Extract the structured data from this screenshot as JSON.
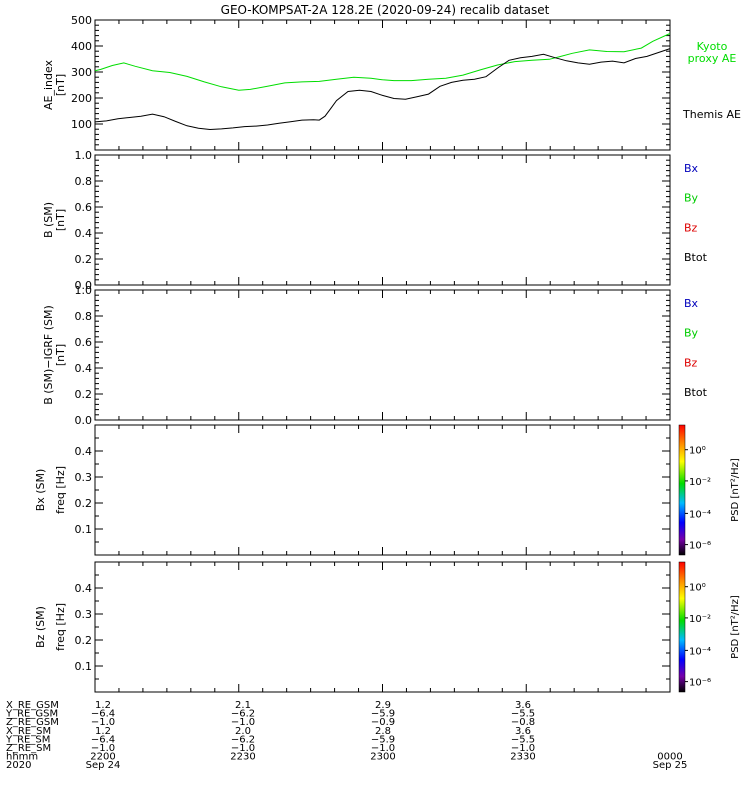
{
  "title": "GEO-KOMPSAT-2A 128.2E (2020-09-24) recalib dataset",
  "chart_data": [
    {
      "type": "line",
      "panel": "ae",
      "ylabel": "AE_index",
      "yunit": "[nT]",
      "ylim": [
        0,
        500
      ],
      "yticks": [
        "100",
        "200",
        "300",
        "400",
        "500"
      ],
      "series": [
        {
          "name": "Kyoto proxy AE",
          "label_lines": [
            "Kyoto",
            "proxy AE"
          ],
          "color": "#00dd00",
          "x": [
            0,
            0.01,
            0.03,
            0.05,
            0.07,
            0.1,
            0.13,
            0.16,
            0.19,
            0.22,
            0.25,
            0.27,
            0.3,
            0.33,
            0.36,
            0.39,
            0.42,
            0.45,
            0.48,
            0.5,
            0.52,
            0.55,
            0.58,
            0.61,
            0.64,
            0.67,
            0.7,
            0.73,
            0.76,
            0.79,
            0.81,
            0.83,
            0.86,
            0.89,
            0.92,
            0.95,
            0.97,
            1.0
          ],
          "y": [
            305,
            310,
            325,
            335,
            322,
            305,
            298,
            283,
            262,
            243,
            230,
            233,
            245,
            258,
            262,
            264,
            272,
            280,
            276,
            270,
            267,
            267,
            272,
            276,
            288,
            308,
            327,
            340,
            345,
            349,
            360,
            372,
            385,
            379,
            378,
            392,
            418,
            448
          ]
        },
        {
          "name": "Themis AE",
          "label_lines": [
            "Themis AE"
          ],
          "color": "#000000",
          "x": [
            0,
            0.02,
            0.04,
            0.06,
            0.08,
            0.1,
            0.12,
            0.14,
            0.16,
            0.18,
            0.2,
            0.22,
            0.24,
            0.26,
            0.28,
            0.3,
            0.32,
            0.34,
            0.36,
            0.38,
            0.39,
            0.4,
            0.41,
            0.42,
            0.44,
            0.46,
            0.48,
            0.5,
            0.52,
            0.54,
            0.56,
            0.58,
            0.6,
            0.62,
            0.64,
            0.66,
            0.68,
            0.7,
            0.72,
            0.74,
            0.76,
            0.78,
            0.8,
            0.82,
            0.84,
            0.86,
            0.88,
            0.9,
            0.92,
            0.94,
            0.96,
            0.98,
            1.0
          ],
          "y": [
            108,
            112,
            120,
            125,
            130,
            138,
            128,
            110,
            93,
            84,
            79,
            81,
            85,
            90,
            92,
            96,
            103,
            109,
            115,
            116,
            115,
            130,
            160,
            190,
            225,
            230,
            225,
            210,
            198,
            195,
            205,
            215,
            245,
            260,
            268,
            272,
            282,
            315,
            345,
            355,
            360,
            368,
            355,
            343,
            335,
            330,
            338,
            342,
            335,
            352,
            360,
            375,
            390
          ]
        }
      ]
    },
    {
      "type": "line",
      "panel": "b",
      "ylabel": "B (SM)",
      "yunit": "[nT]",
      "ylim": [
        0,
        1
      ],
      "yticks": [
        "0.0",
        "0.2",
        "0.4",
        "0.6",
        "0.8",
        "1.0"
      ],
      "legend": [
        {
          "name": "Bx",
          "color": "#0000bb"
        },
        {
          "name": "By",
          "color": "#00cc00"
        },
        {
          "name": "Bz",
          "color": "#dd0000"
        },
        {
          "name": "Btot",
          "color": "#000000"
        }
      ]
    },
    {
      "type": "line",
      "panel": "bdiff",
      "ylabel": "B (SM)−IGRF (SM)",
      "yunit": "[nT]",
      "ylim": [
        0,
        1
      ],
      "yticks": [
        "0.0",
        "0.2",
        "0.4",
        "0.6",
        "0.8",
        "1.0"
      ],
      "legend": [
        {
          "name": "Bx",
          "color": "#0000bb"
        },
        {
          "name": "By",
          "color": "#00cc00"
        },
        {
          "name": "Bz",
          "color": "#dd0000"
        },
        {
          "name": "Btot",
          "color": "#000000"
        }
      ]
    },
    {
      "type": "heatmap",
      "panel": "bx_spec",
      "ylabel_outer": "Bx (SM)",
      "ylabel_inner": "freq [Hz]",
      "yticks": [
        "0.1",
        "0.2",
        "0.3",
        "0.4"
      ],
      "colorbar_label": "PSD [nT²/Hz]",
      "colorbar_ticks": [
        "10⁰",
        "10⁻²",
        "10⁻⁴",
        "10⁻⁶"
      ]
    },
    {
      "type": "heatmap",
      "panel": "bz_spec",
      "ylabel_outer": "Bz (SM)",
      "ylabel_inner": "freq [Hz]",
      "yticks": [
        "0.1",
        "0.2",
        "0.3",
        "0.4"
      ],
      "colorbar_label": "PSD [nT²/Hz]",
      "colorbar_ticks": [
        "10⁰",
        "10⁻²",
        "10⁻⁴",
        "10⁻⁶"
      ]
    }
  ],
  "orbit_table": {
    "rows": [
      {
        "label": "X_RE_GSM",
        "values": [
          "1.2",
          "2.1",
          "2.9",
          "3.6",
          ""
        ]
      },
      {
        "label": "Y_RE_GSM",
        "values": [
          "−6.4",
          "−6.2",
          "−5.9",
          "−5.5",
          ""
        ]
      },
      {
        "label": "Z_RE_GSM",
        "values": [
          "−1.0",
          "−1.0",
          "−0.9",
          "−0.8",
          ""
        ]
      },
      {
        "label": "X_RE_SM",
        "values": [
          "1.2",
          "2.0",
          "2.8",
          "3.6",
          ""
        ]
      },
      {
        "label": "Y_RE_SM",
        "values": [
          "−6.4",
          "−6.2",
          "−5.9",
          "−5.5",
          ""
        ]
      },
      {
        "label": "Z_RE_SM",
        "values": [
          "−1.0",
          "−1.0",
          "−1.0",
          "−1.0",
          ""
        ]
      },
      {
        "label": "hhmm",
        "values": [
          "2200",
          "2230",
          "2300",
          "2330",
          "0000"
        ]
      },
      {
        "label": "2020",
        "values": [
          "Sep 24",
          "",
          "",
          "",
          "Sep 25"
        ]
      }
    ]
  }
}
